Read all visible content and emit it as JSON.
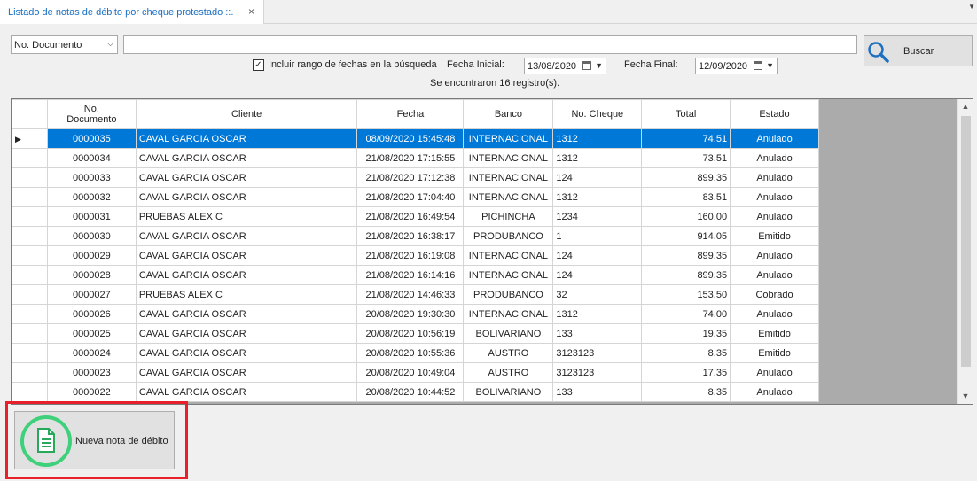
{
  "tab": {
    "title": "Listado de notas de débito por cheque protestado ::.",
    "close": "×"
  },
  "filter": {
    "field_selected": "No. Documento",
    "search_value": "",
    "search_button": "Buscar",
    "include_dates_checked": true,
    "include_dates_label": "Incluir rango de fechas en la búsqueda",
    "fecha_inicial_label": "Fecha Inicial:",
    "fecha_inicial_value": "13/08/2020",
    "fecha_final_label": "Fecha Final:",
    "fecha_final_value": "12/09/2020",
    "result_text": "Se encontraron 16 registro(s)."
  },
  "grid": {
    "headers": [
      "No. Documento",
      "Cliente",
      "Fecha",
      "Banco",
      "No. Cheque",
      "Total",
      "Estado"
    ],
    "selected_row": 0,
    "rows": [
      {
        "doc": "0000035",
        "cliente": "CAVAL GARCIA OSCAR",
        "fecha": "08/09/2020 15:45:48",
        "banco": "INTERNACIONAL",
        "cheque": "1312",
        "total": "74.51",
        "estado": "Anulado"
      },
      {
        "doc": "0000034",
        "cliente": "CAVAL GARCIA OSCAR",
        "fecha": "21/08/2020 17:15:55",
        "banco": "INTERNACIONAL",
        "cheque": "1312",
        "total": "73.51",
        "estado": "Anulado"
      },
      {
        "doc": "0000033",
        "cliente": "CAVAL GARCIA OSCAR",
        "fecha": "21/08/2020 17:12:38",
        "banco": "INTERNACIONAL",
        "cheque": "124",
        "total": "899.35",
        "estado": "Anulado"
      },
      {
        "doc": "0000032",
        "cliente": "CAVAL GARCIA OSCAR",
        "fecha": "21/08/2020 17:04:40",
        "banco": "INTERNACIONAL",
        "cheque": "1312",
        "total": "83.51",
        "estado": "Anulado"
      },
      {
        "doc": "0000031",
        "cliente": "PRUEBAS ALEX C",
        "fecha": "21/08/2020 16:49:54",
        "banco": "PICHINCHA",
        "cheque": "1234",
        "total": "160.00",
        "estado": "Anulado"
      },
      {
        "doc": "0000030",
        "cliente": "CAVAL GARCIA OSCAR",
        "fecha": "21/08/2020 16:38:17",
        "banco": "PRODUBANCO",
        "cheque": "1",
        "total": "914.05",
        "estado": "Emitido"
      },
      {
        "doc": "0000029",
        "cliente": "CAVAL GARCIA OSCAR",
        "fecha": "21/08/2020 16:19:08",
        "banco": "INTERNACIONAL",
        "cheque": "124",
        "total": "899.35",
        "estado": "Anulado"
      },
      {
        "doc": "0000028",
        "cliente": "CAVAL GARCIA OSCAR",
        "fecha": "21/08/2020 16:14:16",
        "banco": "INTERNACIONAL",
        "cheque": "124",
        "total": "899.35",
        "estado": "Anulado"
      },
      {
        "doc": "0000027",
        "cliente": "PRUEBAS ALEX C",
        "fecha": "21/08/2020 14:46:33",
        "banco": "PRODUBANCO",
        "cheque": "32",
        "total": "153.50",
        "estado": "Cobrado"
      },
      {
        "doc": "0000026",
        "cliente": "CAVAL GARCIA OSCAR",
        "fecha": "20/08/2020 19:30:30",
        "banco": "INTERNACIONAL",
        "cheque": "1312",
        "total": "74.00",
        "estado": "Anulado"
      },
      {
        "doc": "0000025",
        "cliente": "CAVAL GARCIA OSCAR",
        "fecha": "20/08/2020 10:56:19",
        "banco": "BOLIVARIANO",
        "cheque": "133",
        "total": "19.35",
        "estado": "Emitido"
      },
      {
        "doc": "0000024",
        "cliente": "CAVAL GARCIA OSCAR",
        "fecha": "20/08/2020 10:55:36",
        "banco": "AUSTRO",
        "cheque": "3123123",
        "total": "8.35",
        "estado": "Emitido"
      },
      {
        "doc": "0000023",
        "cliente": "CAVAL GARCIA OSCAR",
        "fecha": "20/08/2020 10:49:04",
        "banco": "AUSTRO",
        "cheque": "3123123",
        "total": "17.35",
        "estado": "Anulado"
      },
      {
        "doc": "0000022",
        "cliente": "CAVAL GARCIA OSCAR",
        "fecha": "20/08/2020 10:44:52",
        "banco": "BOLIVARIANO",
        "cheque": "133",
        "total": "8.35",
        "estado": "Anulado"
      }
    ]
  },
  "actions": {
    "new_label": "Nueva nota de débito"
  },
  "colors": {
    "accent": "#0078d7",
    "tab_title": "#1a6fc4",
    "highlight": "#e8202a",
    "ring": "#3fd07b"
  },
  "icons": [
    "close-icon",
    "dropdown-arrow-icon",
    "search-icon",
    "calendar-icon",
    "row-pointer-icon",
    "scroll-up-icon",
    "scroll-down-icon",
    "document-icon"
  ]
}
